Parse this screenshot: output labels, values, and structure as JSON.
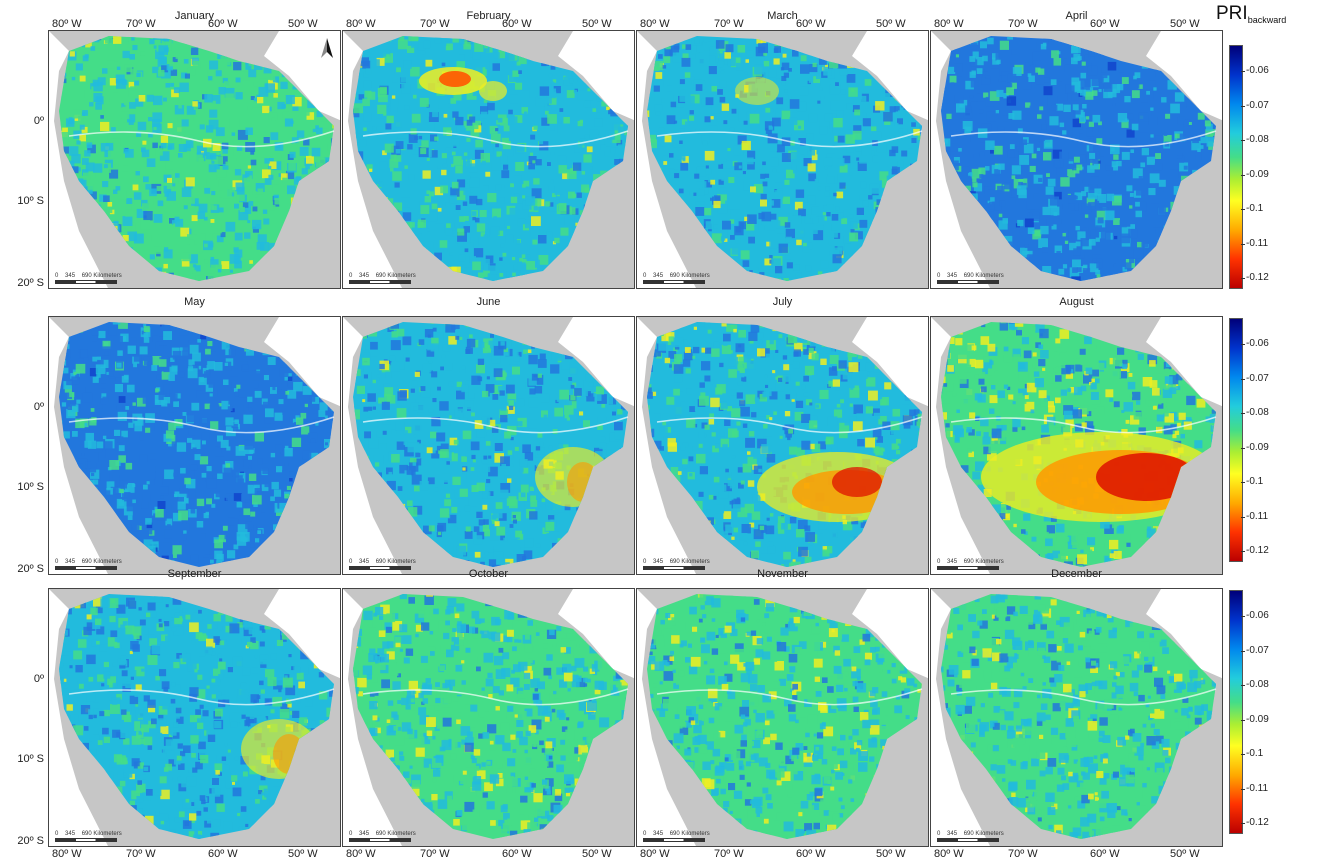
{
  "title_main": "PRI",
  "title_sub": "backward",
  "months": [
    "January",
    "February",
    "March",
    "April",
    "May",
    "June",
    "July",
    "August",
    "September",
    "October",
    "November",
    "December"
  ],
  "lon_labels": [
    "80º W",
    "70º W",
    "60º W",
    "50º W"
  ],
  "lat_labels": [
    "0º",
    "10º S",
    "20º S"
  ],
  "scale": {
    "ticks": [
      "0",
      "345",
      "690"
    ],
    "unit": "Kilometers"
  },
  "colorbar_ticks": [
    "-0.06",
    "-0.07",
    "-0.08",
    "-0.09",
    "-0.1",
    "-0.11",
    "-0.12"
  ],
  "colors": {
    "land_gray": "#c6c6c6",
    "ocean": "#ffffff",
    "blue": "#2277dd",
    "cyan": "#22bbdd",
    "green": "#44dd88",
    "yellow": "#eeee22",
    "orange": "#ffaa00",
    "red": "#dd1100"
  },
  "month_hotspots": {
    "January": [
      "green-mild"
    ],
    "February": [
      "north-hot"
    ],
    "March": [
      "north-warm"
    ],
    "April": [
      "blue-dominant"
    ],
    "May": [
      "blue-dominant"
    ],
    "June": [
      "southeast-warm"
    ],
    "July": [
      "southeast-hot"
    ],
    "August": [
      "southeast-very-hot"
    ],
    "September": [
      "southeast-warm"
    ],
    "October": [
      "green-mild"
    ],
    "November": [
      "green-mild"
    ],
    "December": [
      "green-mild"
    ]
  }
}
